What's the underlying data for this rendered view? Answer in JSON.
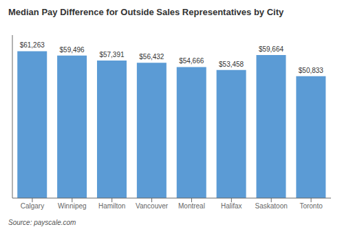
{
  "chart_data": {
    "type": "bar",
    "title": "Median Pay Difference for Outside Sales Representatives by City",
    "categories": [
      "Calgary",
      "Winnipeg",
      "Hamilton",
      "Vancouver",
      "Montreal",
      "Halifax",
      "Saskatoon",
      "Toronto"
    ],
    "values": [
      61263,
      59496,
      57391,
      56432,
      54666,
      53458,
      59664,
      50833
    ],
    "value_labels": [
      "$61,263",
      "$59,496",
      "$57,391",
      "$56,432",
      "$54,666",
      "$53,458",
      "$59,664",
      "$50,833"
    ],
    "data_labels": true,
    "color": "#5B9BD5",
    "ylim": [
      0,
      68000
    ],
    "tick_labels": "x",
    "grid": false,
    "annotations": [
      "Source: payscale.com"
    ]
  }
}
